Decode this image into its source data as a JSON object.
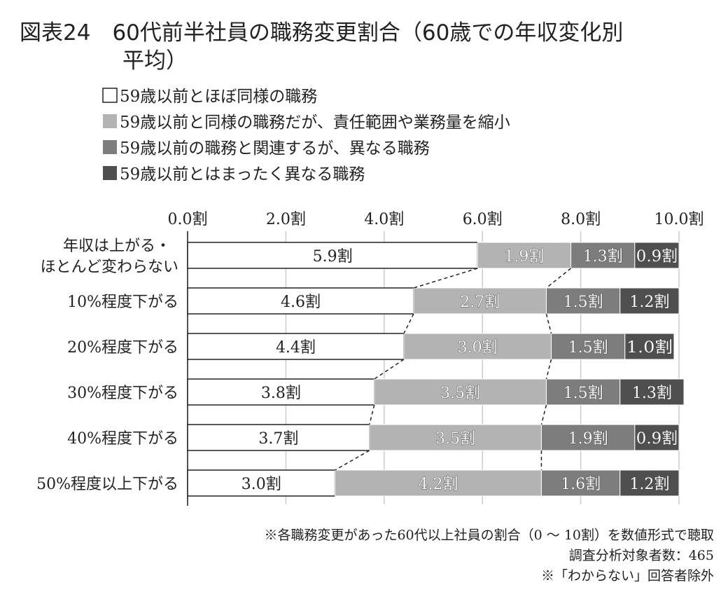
{
  "chart_data": {
    "type": "bar",
    "stacked": true,
    "orientation": "horizontal",
    "title": "図表24　60代前半社員の職務変更割合（60歳での年収変化別",
    "title_line2": "平均）",
    "xlim": [
      0,
      10
    ],
    "xticks": [
      "0.0割",
      "2.0割",
      "4.0割",
      "6.0割",
      "8.0割",
      "10.0割"
    ],
    "tick_values": [
      0,
      2,
      4,
      6,
      8,
      10
    ],
    "unit": "割",
    "categories": [
      [
        "年収は上がる・",
        "ほとんど変わらない"
      ],
      [
        "10%程度下がる"
      ],
      [
        "20%程度下がる"
      ],
      [
        "30%程度下がる"
      ],
      [
        "40%程度下がる"
      ],
      [
        "50%程度以上下がる"
      ]
    ],
    "series": [
      {
        "name": "59歳以前とほぼ同様の職務",
        "color": "#ffffff",
        "values": [
          5.9,
          4.6,
          4.4,
          3.8,
          3.7,
          3.0
        ]
      },
      {
        "name": "59歳以前と同様の職務だが、責任範囲や業務量を縮小",
        "color": "#b3b3b3",
        "values": [
          1.9,
          2.7,
          3.0,
          3.5,
          3.5,
          4.2
        ]
      },
      {
        "name": "59歳以前の職務と関連するが、異なる職務",
        "color": "#7d7d7d",
        "values": [
          1.3,
          1.5,
          1.5,
          1.5,
          1.9,
          1.6
        ]
      },
      {
        "name": "59歳以前とはまったく異なる職務",
        "color": "#4f4f4f",
        "values": [
          0.9,
          1.2,
          1.0,
          1.3,
          0.9,
          1.2
        ]
      }
    ],
    "notes": [
      "※各職務変更があった60代以上社員の割合（0 ～ 10割）を数値形式で聴取",
      "調査分析対象者数：465",
      "※「わからない」回答者除外"
    ],
    "legend_position": "top"
  }
}
